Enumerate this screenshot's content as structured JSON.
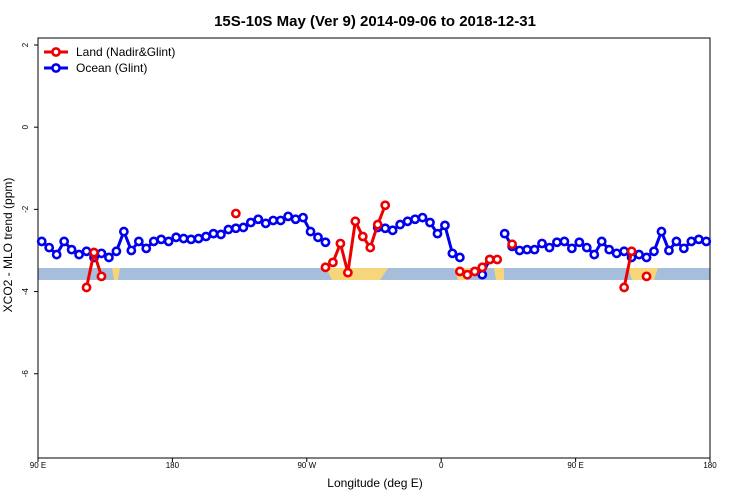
{
  "chart_data": {
    "type": "line",
    "title": "15S-10S May (Ver 9)   2014-09-06 to 2018-12-31",
    "x_label": "Longitude (deg E)",
    "y_label": "XCO2 - MLO trend (ppm)",
    "x": [
      92.5,
      97.5,
      102.5,
      107.5,
      112.5,
      117.5,
      122.5,
      127.5,
      132.5,
      137.5,
      142.5,
      147.5,
      152.5,
      157.5,
      162.5,
      167.5,
      172.5,
      177.5,
      182.5,
      187.5,
      192.5,
      197.5,
      202.5,
      207.5,
      212.5,
      217.5,
      222.5,
      227.5,
      232.5,
      237.5,
      242.5,
      247.5,
      252.5,
      257.5,
      262.5,
      267.5,
      272.5,
      277.5,
      282.5,
      287.5,
      292.5,
      297.5,
      302.5,
      307.5,
      312.5,
      317.5,
      322.5,
      327.5,
      332.5,
      337.5,
      342.5,
      347.5,
      352.5,
      357.5,
      362.5,
      367.5,
      372.5,
      377.5,
      382.5,
      387.5,
      392.5,
      397.5,
      402.5,
      407.5,
      412.5,
      417.5,
      422.5,
      427.5,
      432.5,
      437.5,
      442.5,
      447.5,
      452.5,
      457.5,
      462.5,
      467.5,
      472.5,
      477.5,
      482.5,
      487.5,
      492.5,
      497.5,
      502.5,
      507.5,
      512.5,
      517.5,
      522.5,
      527.5,
      532.5,
      537.5
    ],
    "series": [
      {
        "name": "Ocean (Glint)",
        "color": "#0000ee",
        "values": [
          -2.78,
          -2.93,
          -3.1,
          -2.78,
          -2.98,
          -3.1,
          -3.02,
          -3.17,
          -3.07,
          -3.17,
          -3.02,
          -2.54,
          -3.0,
          -2.78,
          -2.95,
          -2.78,
          -2.73,
          -2.78,
          -2.68,
          -2.71,
          -2.73,
          -2.71,
          -2.66,
          -2.59,
          -2.61,
          -2.49,
          -2.46,
          -2.44,
          -2.32,
          -2.24,
          -2.34,
          -2.27,
          -2.27,
          -2.17,
          -2.24,
          -2.2,
          -2.54,
          -2.68,
          -2.8,
          null,
          null,
          null,
          null,
          null,
          null,
          -2.44,
          -2.46,
          -2.51,
          -2.37,
          -2.29,
          -2.24,
          -2.2,
          -2.32,
          -2.59,
          -2.39,
          -3.07,
          -3.17,
          null,
          null,
          -3.59,
          -3.22,
          null,
          -2.59,
          -2.9,
          -3.0,
          -2.98,
          -2.98,
          -2.83,
          -2.93,
          -2.8,
          -2.78,
          -2.95,
          -2.8,
          -2.93,
          -3.1,
          -2.78,
          -2.98,
          -3.07,
          -3.02,
          -3.17,
          -3.1,
          -3.17,
          -3.02,
          -2.54,
          -3.0,
          -2.78,
          -2.95,
          -2.78,
          -2.73,
          -2.78
        ]
      },
      {
        "name": "Land (Nadir&Glint)",
        "color": "#ee0000",
        "values": [
          null,
          null,
          null,
          null,
          null,
          null,
          -3.9,
          -3.05,
          -3.63,
          null,
          null,
          null,
          null,
          null,
          null,
          null,
          null,
          null,
          null,
          null,
          null,
          null,
          null,
          null,
          null,
          null,
          -2.1,
          null,
          null,
          null,
          null,
          null,
          null,
          null,
          null,
          null,
          null,
          null,
          -3.41,
          -3.29,
          -2.83,
          -3.54,
          -2.29,
          -2.66,
          -2.93,
          -2.37,
          -1.9,
          null,
          null,
          null,
          null,
          null,
          null,
          null,
          null,
          null,
          -3.51,
          -3.59,
          -3.51,
          -3.41,
          -3.22,
          -3.22,
          null,
          -2.85,
          null,
          null,
          null,
          null,
          null,
          null,
          null,
          null,
          null,
          null,
          null,
          null,
          null,
          null,
          -3.9,
          -3.02,
          null,
          -3.63,
          null,
          null,
          null,
          null,
          null,
          null,
          null,
          null
        ]
      }
    ],
    "legend_order": [
      1,
      0
    ],
    "xlim": [
      90,
      540
    ],
    "xticks": [
      {
        "value": 90,
        "label": "90 E"
      },
      {
        "value": 180,
        "label": "180"
      },
      {
        "value": 270,
        "label": "90 W"
      },
      {
        "value": 360,
        "label": "0"
      },
      {
        "value": 450,
        "label": "90 E"
      },
      {
        "value": 540,
        "label": "180"
      }
    ],
    "ylim": [
      -8.05,
      2.17
    ],
    "yticks": [
      2,
      0,
      -2,
      -4,
      -6
    ],
    "legend": "top-left"
  }
}
